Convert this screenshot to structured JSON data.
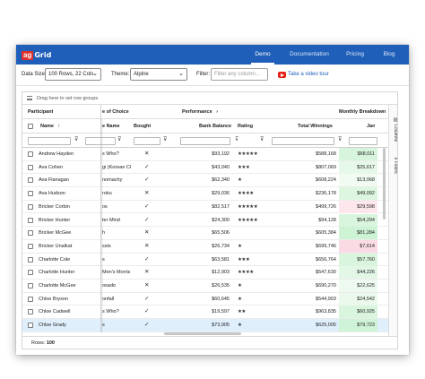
{
  "nav": {
    "logo_box": "ag",
    "logo_text": "Grid",
    "links": [
      "Demo",
      "Documentation",
      "Pricing",
      "Blog"
    ],
    "active": "Demo"
  },
  "toolbar": {
    "data_size_label": "Data Size:",
    "data_size_value": "100 Rows, 22 Cols",
    "theme_label": "Theme:",
    "theme_value": "Alpine",
    "filter_label": "Filter:",
    "filter_placeholder": "Filter any column...",
    "video_link": "Take a video tour"
  },
  "grid": {
    "group_panel_text": "Drag here to set row groups",
    "group_headers": {
      "participant": "Participant",
      "game_of_choice": "e of Choice",
      "performance": "Performance",
      "monthly_breakdown": "Monthly Breakdown"
    },
    "columns": {
      "name": "Name",
      "game_name": "e Name",
      "bought": "Bought",
      "bank_balance": "Bank Balance",
      "rating": "Rating",
      "total_winnings": "Total Winnings",
      "jan": "Jan"
    },
    "side_tabs": [
      "Columns",
      "Filters"
    ],
    "rows": [
      {
        "name": "Andrew Hayden",
        "game": "s Who?",
        "bought": "x",
        "balance": "$93,192",
        "rating": "★★★★★",
        "winnings": "$588,168",
        "jan": "$68,011",
        "jan_color": "#d7f4dc"
      },
      {
        "name": "Ava Cohen",
        "game": "gi (Korean Che...",
        "bought": "check",
        "balance": "$43,040",
        "rating": "★★★",
        "winnings": "$807,069",
        "jan": "$25,617",
        "jan_color": "#e6f8e9"
      },
      {
        "name": "Ava Flanagan",
        "game": "nomachy",
        "bought": "check",
        "balance": "$62,340",
        "rating": "★",
        "winnings": "$608,224",
        "jan": "$13,068",
        "jan_color": "#f1fbf2"
      },
      {
        "name": "Ava Hudson",
        "game": "roku",
        "bought": "x",
        "balance": "$29,036",
        "rating": "★★★★",
        "winnings": "$236,178",
        "jan": "$49,092",
        "jan_color": "#dcf6e0"
      },
      {
        "name": "Bricker Corbin",
        "game": "os",
        "bought": "check",
        "balance": "$82,517",
        "rating": "★★★★★",
        "winnings": "$499,726",
        "jan": "$29,598",
        "jan_color": "#fde6ec"
      },
      {
        "name": "Bricker Hunter",
        "game": "ter Mind",
        "bought": "check",
        "balance": "$24,300",
        "rating": "★★★★★",
        "winnings": "$94,128",
        "jan": "$54,294",
        "jan_color": "#d9f5de"
      },
      {
        "name": "Bricker McGee",
        "game": "h",
        "bought": "x",
        "balance": "$65,506",
        "rating": "",
        "winnings": "$605,384",
        "jan": "$81,284",
        "jan_color": "#cdf2d4"
      },
      {
        "name": "Bricker Unalkat",
        "game": "ssts",
        "bought": "x",
        "balance": "$26,734",
        "rating": "★",
        "winnings": "$699,746",
        "jan": "$7,614",
        "jan_color": "#fadbe4"
      },
      {
        "name": "Charlotte Cole",
        "game": "s",
        "bought": "check",
        "balance": "$63,581",
        "rating": "★★★",
        "winnings": "$656,764",
        "jan": "$57,760",
        "jan_color": "#d9f5de"
      },
      {
        "name": "Charlotte Hunter",
        "game": "Men's Morris",
        "bought": "x",
        "balance": "$12,903",
        "rating": "★★★★",
        "winnings": "$547,630",
        "jan": "$44,226",
        "jan_color": "#e3f7e6"
      },
      {
        "name": "Charlotte McGee",
        "game": "osado",
        "bought": "x",
        "balance": "$26,535",
        "rating": "★",
        "winnings": "$690,270",
        "jan": "$22,625",
        "jan_color": "#eefaf0"
      },
      {
        "name": "Chloe Bryson",
        "game": "onfall",
        "bought": "check",
        "balance": "$60,645",
        "rating": "★",
        "winnings": "$544,903",
        "jan": "$24,542",
        "jan_color": "#ebf9ed"
      },
      {
        "name": "Chloe Cadwell",
        "game": "s Who?",
        "bought": "check",
        "balance": "$19,597",
        "rating": "★★",
        "winnings": "$963,835",
        "jan": "$60,925",
        "jan_color": "#d9f5de"
      },
      {
        "name": "Chloe Grady",
        "game": "s",
        "bought": "check",
        "balance": "$73,905",
        "rating": "★",
        "winnings": "$625,005",
        "jan": "$79,723",
        "jan_color": "#cff3d6"
      }
    ],
    "status_label": "Rows:",
    "status_value": "100"
  }
}
